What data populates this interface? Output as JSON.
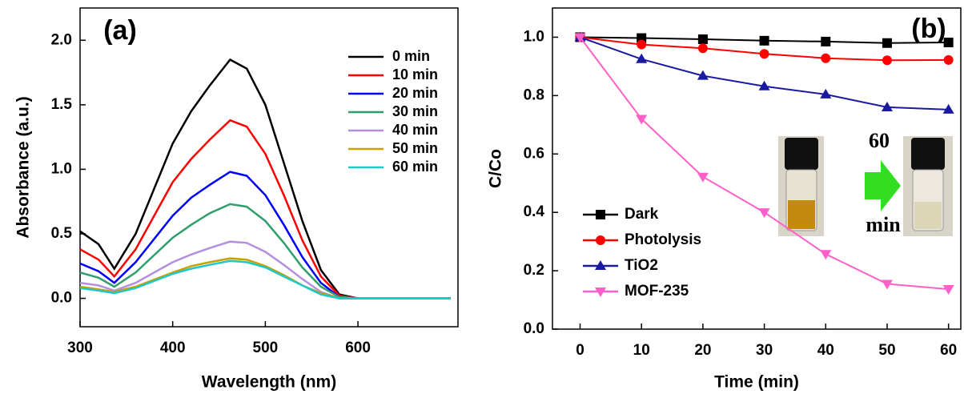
{
  "chart_data": [
    {
      "type": "line",
      "annotations": [
        "(a)"
      ],
      "xlabel": "Wavelength (nm)",
      "ylabel": "Absorbance (a.u.)",
      "x": [
        300,
        320,
        337,
        360,
        400,
        420,
        440,
        462,
        480,
        500,
        520,
        540,
        560,
        580,
        600,
        650,
        700
      ],
      "xlim": [
        300,
        708
      ],
      "xticks": [
        300,
        400,
        500,
        600
      ],
      "ylim": [
        -0.22,
        2.25
      ],
      "yticks": [
        {
          "value": 0,
          "label": "0.0"
        },
        0.5,
        {
          "value": 1,
          "label": "1.0"
        },
        1.5,
        {
          "value": 2,
          "label": "2.0"
        }
      ],
      "legend": "upper right",
      "series": [
        {
          "name": "0 min",
          "color": "#000000",
          "values": [
            0.52,
            0.42,
            0.23,
            0.5,
            1.2,
            1.45,
            1.65,
            1.85,
            1.78,
            1.5,
            1.05,
            0.6,
            0.22,
            0.03,
            0,
            0,
            0
          ]
        },
        {
          "name": "10 min",
          "color": "#ff0000",
          "values": [
            0.38,
            0.3,
            0.17,
            0.38,
            0.9,
            1.08,
            1.23,
            1.38,
            1.33,
            1.12,
            0.8,
            0.45,
            0.17,
            0.02,
            0,
            0,
            0
          ]
        },
        {
          "name": "20 min",
          "color": "#0000ff",
          "values": [
            0.27,
            0.21,
            0.12,
            0.28,
            0.64,
            0.78,
            0.88,
            0.98,
            0.95,
            0.8,
            0.57,
            0.32,
            0.12,
            0.01,
            0,
            0,
            0
          ]
        },
        {
          "name": "30 min",
          "color": "#2e9e6a",
          "values": [
            0.2,
            0.16,
            0.09,
            0.2,
            0.47,
            0.57,
            0.66,
            0.73,
            0.71,
            0.6,
            0.43,
            0.24,
            0.09,
            0.01,
            0,
            0,
            0
          ]
        },
        {
          "name": "40 min",
          "color": "#b38fdd",
          "values": [
            0.12,
            0.1,
            0.06,
            0.12,
            0.28,
            0.34,
            0.39,
            0.44,
            0.43,
            0.36,
            0.26,
            0.15,
            0.05,
            0,
            0,
            0,
            0
          ]
        },
        {
          "name": "50 min",
          "color": "#c8a000",
          "values": [
            0.09,
            0.07,
            0.05,
            0.09,
            0.2,
            0.25,
            0.28,
            0.31,
            0.3,
            0.25,
            0.18,
            0.1,
            0.04,
            0,
            0,
            0,
            0
          ]
        },
        {
          "name": "60 min",
          "color": "#1fc8c8",
          "values": [
            0.08,
            0.06,
            0.04,
            0.08,
            0.19,
            0.23,
            0.26,
            0.29,
            0.28,
            0.24,
            0.17,
            0.1,
            0.03,
            0,
            0,
            0,
            0
          ]
        }
      ]
    },
    {
      "type": "line",
      "annotations": [
        "(b)",
        "60",
        "min"
      ],
      "xlabel": "Time (min)",
      "ylabel": "C/Co",
      "x": [
        0,
        10,
        20,
        30,
        40,
        50,
        60
      ],
      "xlim": [
        -4.5,
        62
      ],
      "xticks": [
        0,
        10,
        20,
        30,
        40,
        50,
        60
      ],
      "ylim": [
        0,
        1.1
      ],
      "yticks": [
        {
          "value": 0,
          "label": "0.0"
        },
        0.2,
        0.4,
        0.6,
        0.8,
        {
          "value": 1,
          "label": "1.0"
        }
      ],
      "legend": "lower left",
      "markers": true,
      "series": [
        {
          "name": "Dark",
          "color": "#000000",
          "marker": "square",
          "values": [
            1.0,
            0.997,
            0.993,
            0.988,
            0.985,
            0.98,
            0.982
          ]
        },
        {
          "name": "Photolysis",
          "color": "#ff0000",
          "marker": "circle",
          "values": [
            1.0,
            0.975,
            0.962,
            0.943,
            0.928,
            0.921,
            0.922
          ]
        },
        {
          "name": "TiO2",
          "color": "#1a1aa0",
          "marker": "triangle-up",
          "values": [
            1.0,
            0.925,
            0.868,
            0.832,
            0.804,
            0.76,
            0.752
          ]
        },
        {
          "name": "MOF-235",
          "color": "#ff5fc8",
          "marker": "triangle-down",
          "values": [
            1.0,
            0.72,
            0.522,
            0.4,
            0.257,
            0.155,
            0.137
          ]
        }
      ]
    }
  ]
}
